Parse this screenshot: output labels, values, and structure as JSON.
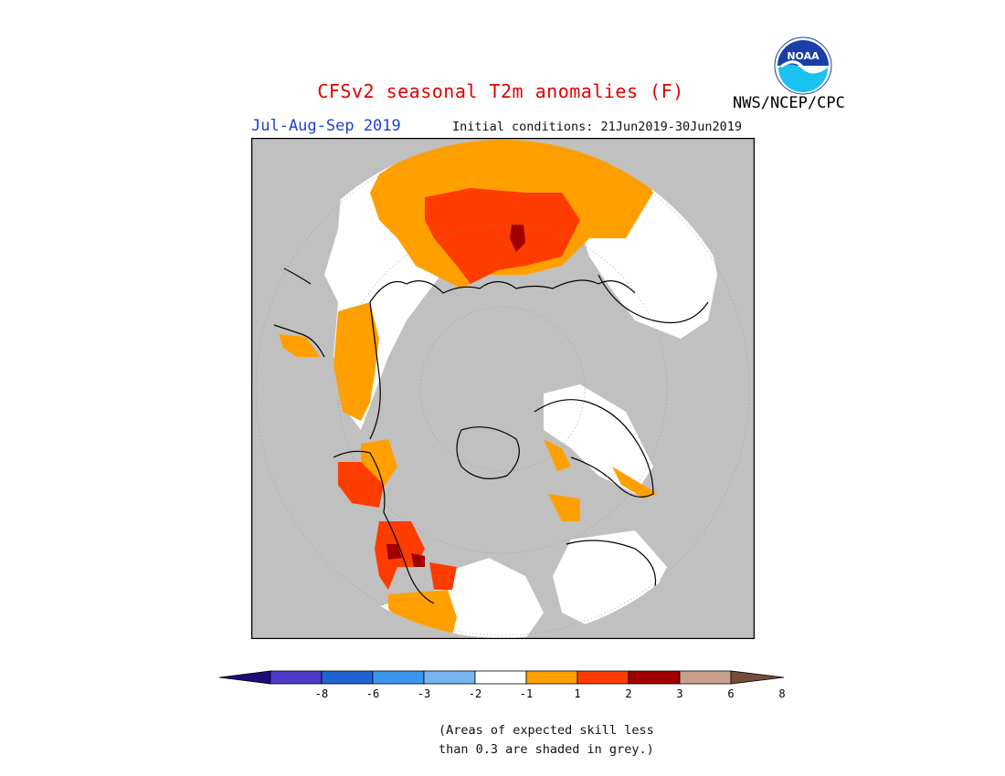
{
  "header": {
    "title": "CFSv2 seasonal T2m anomalies (F)",
    "season": "Jul-Aug-Sep 2019",
    "initial_conditions": "Initial conditions: 21Jun2019-30Jun2019",
    "agency": "NWS/NCEP/CPC",
    "logo_text": "NOAA"
  },
  "colorbar": {
    "colors": [
      "#1e0a78",
      "#4c3cc8",
      "#1e64d2",
      "#3c96f0",
      "#78b4f0",
      "#ffffff",
      "#ffa000",
      "#ff3c00",
      "#a00000",
      "#c8a08c",
      "#784c3c"
    ],
    "tick_labels": [
      "-8",
      "-6",
      "-3",
      "-2",
      "-1",
      "1",
      "2",
      "3",
      "6",
      "8"
    ]
  },
  "note": {
    "line1": "(Areas of expected skill less",
    "line2": "than 0.3 are shaded in grey.)"
  },
  "colors": {
    "ocean_grey": "#c0c0c0",
    "land_white": "#ffffff",
    "anom_1_2": "#ffa000",
    "anom_2_3": "#ff3c00",
    "anom_3_6": "#a00000"
  }
}
